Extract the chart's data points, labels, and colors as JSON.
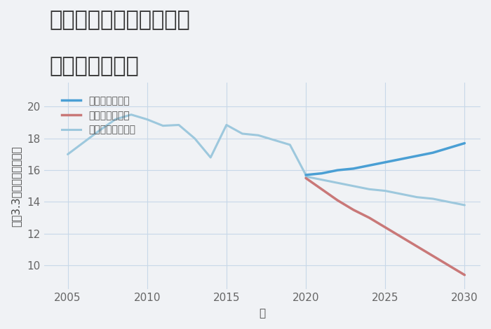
{
  "title_line1": "三重県鈴鹿市南若松町の",
  "title_line2": "土地の価格推移",
  "xlabel": "年",
  "ylabel": "坪（3.3㎡）単価（万円）",
  "background_color": "#f0f2f5",
  "plot_background_color": "#f0f2f5",
  "grid_color": "#c8d8e8",
  "normal_color": "#9dc8dd",
  "good_color": "#4a9fd4",
  "bad_color": "#c97878",
  "historical_years": [
    2005,
    2007,
    2008,
    2009,
    2010,
    2011,
    2012,
    2013,
    2014,
    2015,
    2016,
    2017,
    2018,
    2019,
    2020
  ],
  "historical_values": [
    17.0,
    18.5,
    19.2,
    19.5,
    19.2,
    18.8,
    18.85,
    18.0,
    16.8,
    18.85,
    18.3,
    18.2,
    17.9,
    17.6,
    15.7
  ],
  "forecast_years": [
    2020,
    2021,
    2022,
    2023,
    2024,
    2025,
    2026,
    2027,
    2028,
    2029,
    2030
  ],
  "good_values": [
    15.7,
    15.8,
    16.0,
    16.1,
    16.3,
    16.5,
    16.7,
    16.9,
    17.1,
    17.4,
    17.7
  ],
  "bad_values": [
    15.5,
    14.8,
    14.1,
    13.5,
    13.0,
    12.4,
    11.8,
    11.2,
    10.6,
    10.0,
    9.4
  ],
  "normal_values": [
    15.6,
    15.4,
    15.2,
    15.0,
    14.8,
    14.7,
    14.5,
    14.3,
    14.2,
    14.0,
    13.8
  ],
  "ylim": [
    8.5,
    21.5
  ],
  "yticks": [
    10,
    12,
    14,
    16,
    18,
    20
  ],
  "xticks": [
    2005,
    2010,
    2015,
    2020,
    2025,
    2030
  ],
  "legend_labels": [
    "グッドシナリオ",
    "バッドシナリオ",
    "ノーマルシナリオ"
  ],
  "title_fontsize": 22,
  "label_fontsize": 11,
  "tick_fontsize": 11,
  "legend_fontsize": 11
}
